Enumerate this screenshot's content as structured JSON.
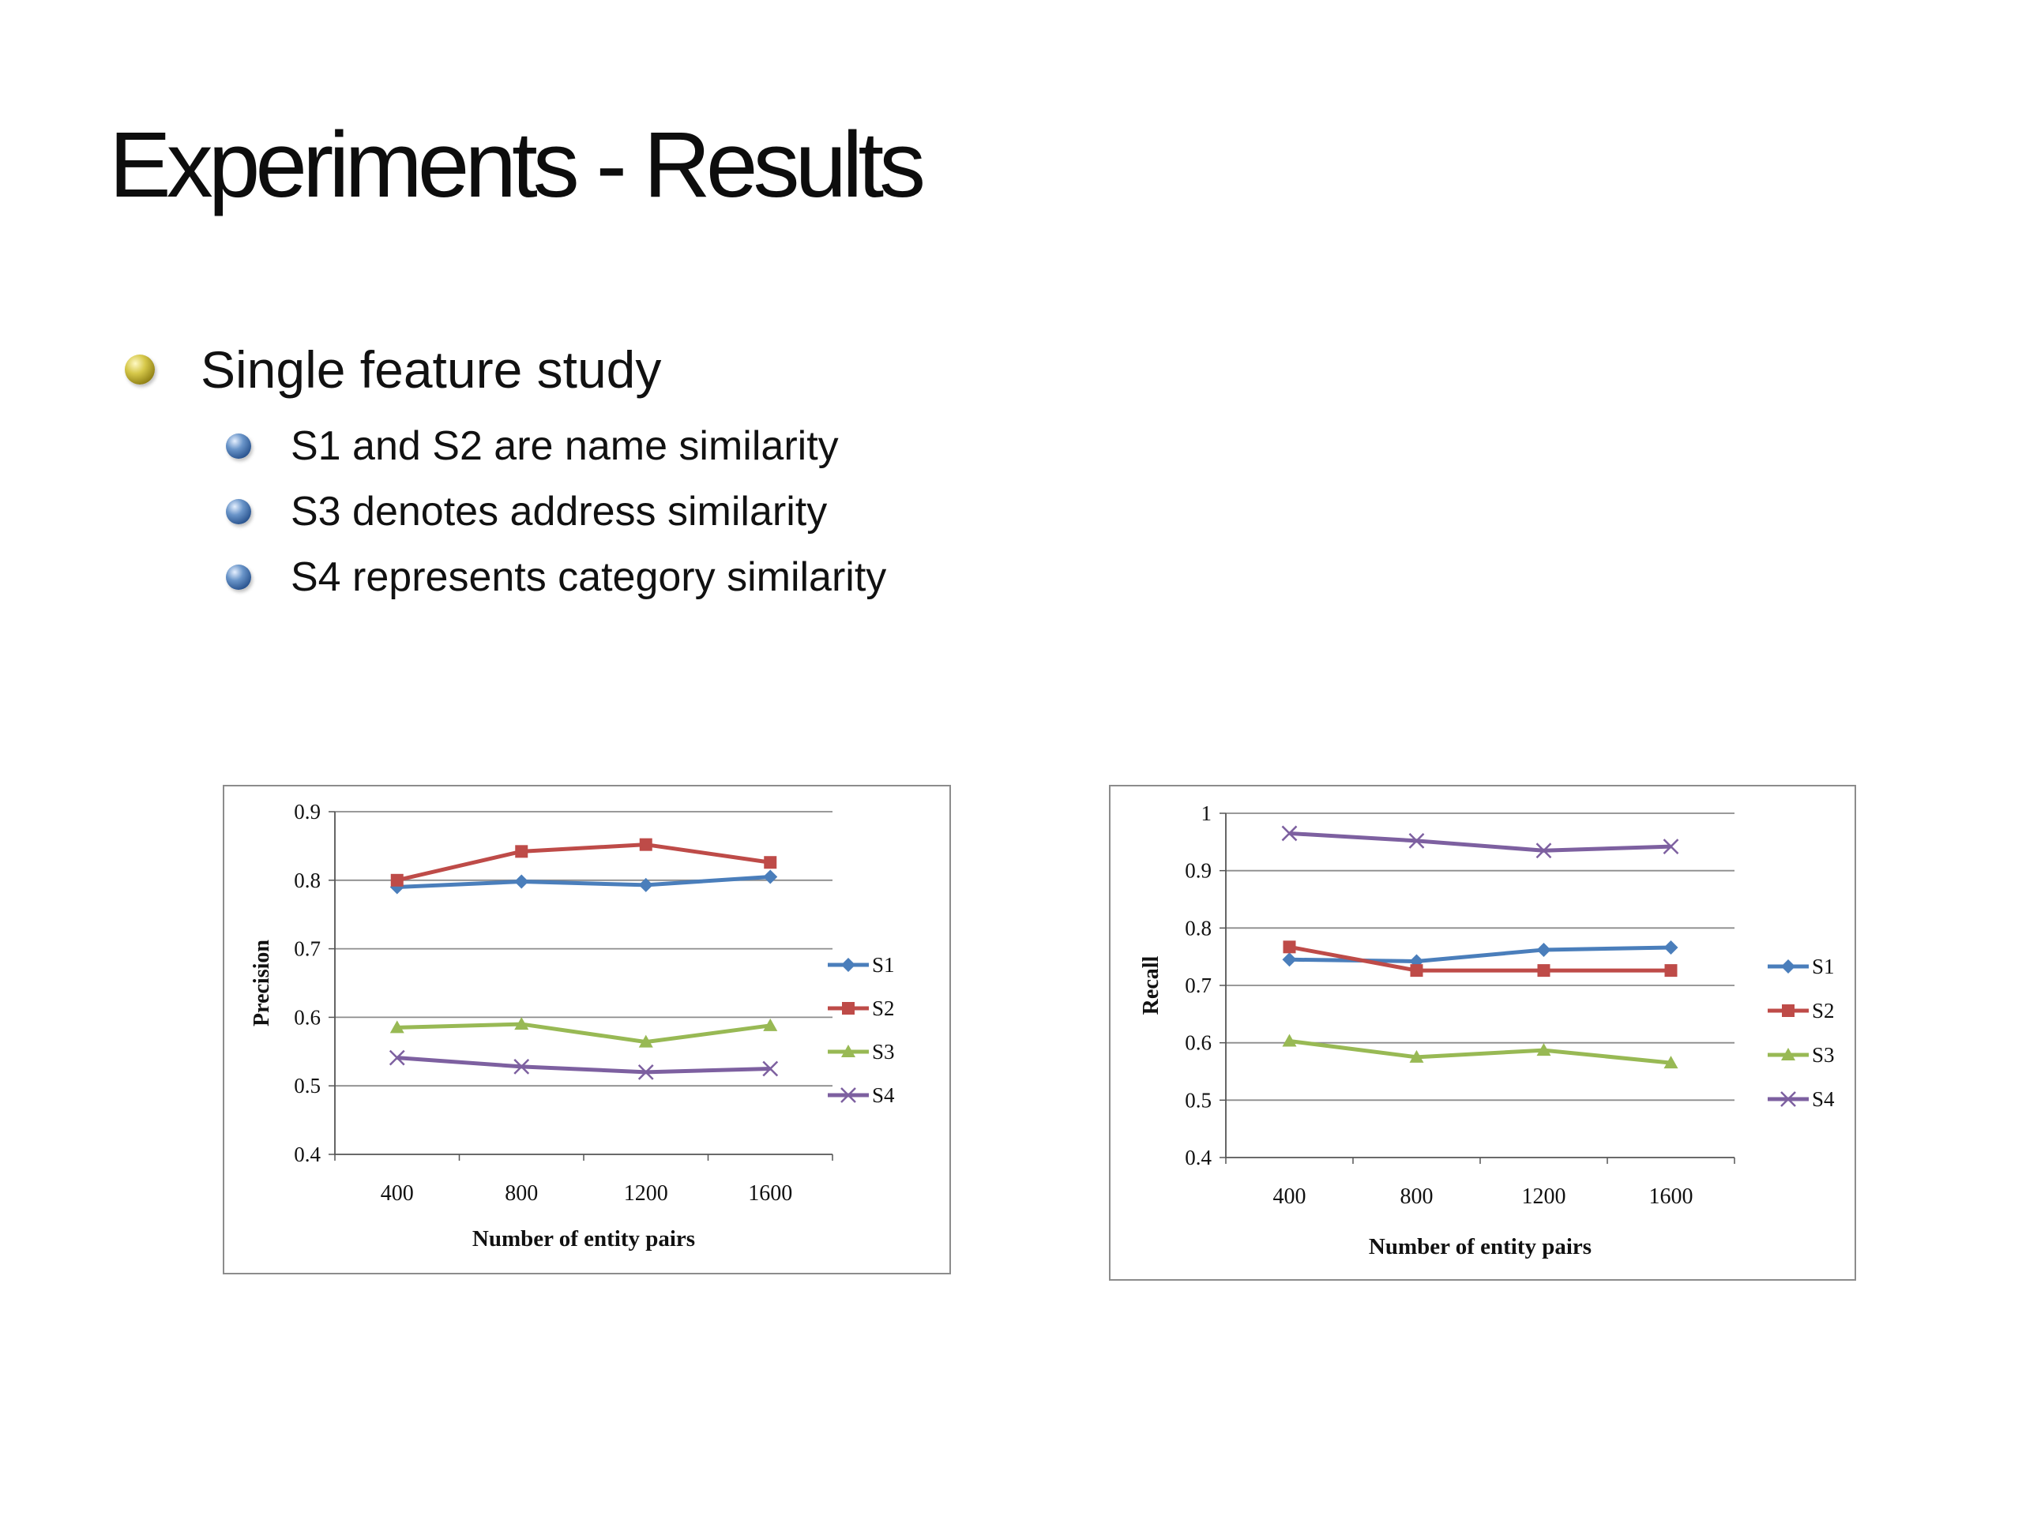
{
  "slide": {
    "title": "Experiments - Results",
    "bullets": [
      {
        "text": "Single feature study",
        "level": 1
      },
      {
        "text": "S1  and S2 are name similarity",
        "level": 2
      },
      {
        "text": "S3 denotes address similarity",
        "level": 2
      },
      {
        "text": "S4 represents category similarity",
        "level": 2
      }
    ]
  },
  "colors": {
    "S1": "#4a7ebb",
    "S2": "#be4b48",
    "S3": "#98b954",
    "S4": "#7d60a0",
    "grid": "#8c8c8c"
  },
  "chart_data": [
    {
      "type": "line",
      "title": "",
      "xlabel": "Number of  entity pairs",
      "ylabel": "Precision",
      "categories": [
        "400",
        "800",
        "1200",
        "1600"
      ],
      "ylim": [
        0.4,
        0.9
      ],
      "yticks": [
        "0.4",
        "0.5",
        "0.6",
        "0.7",
        "0.8",
        "0.9"
      ],
      "grid": true,
      "legend": "right",
      "series": [
        {
          "name": "S1",
          "values": [
            0.79,
            0.798,
            0.793,
            0.805
          ],
          "marker": "diamond"
        },
        {
          "name": "S2",
          "values": [
            0.8,
            0.842,
            0.852,
            0.826
          ],
          "marker": "square"
        },
        {
          "name": "S3",
          "values": [
            0.585,
            0.59,
            0.564,
            0.588
          ],
          "marker": "triangle"
        },
        {
          "name": "S4",
          "values": [
            0.541,
            0.528,
            0.52,
            0.525
          ],
          "marker": "x"
        }
      ]
    },
    {
      "type": "line",
      "title": "",
      "xlabel": "Number of entity pairs",
      "ylabel": "Recall",
      "categories": [
        "400",
        "800",
        "1200",
        "1600"
      ],
      "ylim": [
        0.4,
        1.0
      ],
      "yticks": [
        "0.4",
        "0.5",
        "0.6",
        "0.7",
        "0.8",
        "0.9",
        "1"
      ],
      "grid": true,
      "legend": "right",
      "series": [
        {
          "name": "S1",
          "values": [
            0.745,
            0.742,
            0.762,
            0.766
          ],
          "marker": "diamond"
        },
        {
          "name": "S2",
          "values": [
            0.767,
            0.726,
            0.726,
            0.726
          ],
          "marker": "square"
        },
        {
          "name": "S3",
          "values": [
            0.603,
            0.575,
            0.587,
            0.565
          ],
          "marker": "triangle"
        },
        {
          "name": "S4",
          "values": [
            0.965,
            0.952,
            0.935,
            0.942
          ],
          "marker": "x"
        }
      ]
    }
  ]
}
